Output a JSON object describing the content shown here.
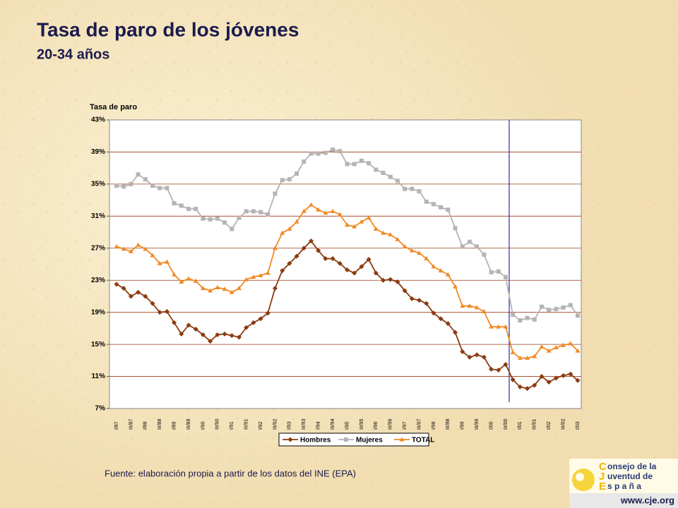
{
  "chart_data": {
    "type": "line",
    "title": "Tasa de paro de los jóvenes",
    "subtitle": "20-34 años",
    "y_label": "Tasa de paro",
    "source": "Fuente: elaboración propia a partir de los datos del INE (EPA)",
    "categories": [
      "I/87",
      null,
      "III/87",
      null,
      "I/88",
      null,
      "III/88",
      null,
      "I/89",
      null,
      "III/89",
      null,
      "I/90",
      null,
      "III/90",
      null,
      "I/91",
      null,
      "III/91",
      null,
      "I/92",
      null,
      "III/92",
      null,
      "I/93",
      null,
      "III/93",
      null,
      "I/94",
      null,
      "III/94",
      null,
      "I/95",
      null,
      "III/95",
      null,
      "I/96",
      null,
      "III/96",
      null,
      "I/97",
      null,
      "III/97",
      null,
      "I/98",
      null,
      "III/98",
      null,
      "I/99",
      null,
      "III/99",
      null,
      "I/00",
      null,
      "III/00",
      null,
      "I/01",
      null,
      "III/01",
      null,
      "I/02",
      null,
      "III/02",
      null,
      "I/03"
    ],
    "series": [
      {
        "name": "Hombres",
        "color": "#8b3a0f",
        "marker": "diamond",
        "values": [
          22.5,
          22.0,
          21.0,
          21.5,
          21.0,
          20.1,
          19.0,
          19.1,
          17.7,
          16.3,
          17.4,
          16.9,
          16.2,
          15.4,
          16.2,
          16.3,
          16.1,
          15.9,
          17.1,
          17.7,
          18.2,
          18.9,
          22.0,
          24.2,
          25.1,
          26.0,
          27.0,
          27.9,
          26.7,
          25.7,
          25.7,
          25.1,
          24.3,
          23.9,
          24.7,
          25.6,
          23.9,
          23.0,
          23.1,
          22.8,
          21.7,
          20.7,
          20.5,
          20.1,
          18.9,
          18.2,
          17.6,
          16.5,
          14.1,
          13.4,
          13.7,
          13.4,
          11.9,
          11.8,
          12.5,
          10.6,
          9.7,
          9.5,
          9.9,
          11.0,
          10.3,
          10.8,
          11.1,
          11.3,
          10.5
        ]
      },
      {
        "name": "Mujeres",
        "color": "#b4b4b4",
        "marker": "square",
        "values": [
          34.8,
          34.7,
          35.0,
          36.2,
          35.6,
          34.8,
          34.5,
          34.5,
          32.6,
          32.3,
          31.9,
          31.9,
          30.7,
          30.6,
          30.7,
          30.2,
          29.4,
          30.8,
          31.6,
          31.6,
          31.5,
          31.2,
          33.8,
          35.5,
          35.6,
          36.3,
          37.8,
          38.8,
          38.8,
          38.9,
          39.3,
          39.1,
          37.5,
          37.5,
          37.9,
          37.6,
          36.8,
          36.4,
          35.9,
          35.4,
          34.4,
          34.4,
          34.1,
          32.8,
          32.5,
          32.1,
          31.8,
          29.5,
          27.2,
          27.8,
          27.2,
          26.2,
          24.0,
          24.1,
          23.4,
          18.7,
          18.0,
          18.3,
          18.1,
          19.7,
          19.3,
          19.4,
          19.6,
          19.9,
          18.6
        ]
      },
      {
        "name": "TOTAL",
        "color": "#f08a24",
        "marker": "triangle",
        "values": [
          27.2,
          26.9,
          26.6,
          27.4,
          26.9,
          26.1,
          25.1,
          25.3,
          23.7,
          22.8,
          23.2,
          22.9,
          22.0,
          21.7,
          22.1,
          21.9,
          21.5,
          22.0,
          23.1,
          23.4,
          23.6,
          23.9,
          27.0,
          28.9,
          29.4,
          30.3,
          31.6,
          32.4,
          31.8,
          31.4,
          31.6,
          31.2,
          29.9,
          29.7,
          30.3,
          30.8,
          29.4,
          28.9,
          28.7,
          28.1,
          27.2,
          26.7,
          26.4,
          25.7,
          24.7,
          24.2,
          23.7,
          22.2,
          19.8,
          19.8,
          19.6,
          19.1,
          17.2,
          17.2,
          17.2,
          14.0,
          13.3,
          13.3,
          13.5,
          14.7,
          14.2,
          14.6,
          14.9,
          15.1,
          14.2
        ]
      }
    ],
    "ylim": [
      7,
      43
    ],
    "yticks": [
      {
        "value": 7,
        "label": "7%"
      },
      {
        "value": 11,
        "label": "11%"
      },
      {
        "value": 15,
        "label": "15%"
      },
      {
        "value": 19,
        "label": "19%"
      },
      {
        "value": 23,
        "label": "23%"
      },
      {
        "value": 27,
        "label": "27%"
      },
      {
        "value": 31,
        "label": "31%"
      },
      {
        "value": 35,
        "label": "35%"
      },
      {
        "value": 39,
        "label": "39%"
      },
      {
        "value": 43,
        "label": "43%"
      }
    ],
    "grid": true,
    "legend": "bottom"
  },
  "logo": {
    "lines": [
      [
        "C",
        "onsejo de la"
      ],
      [
        "J",
        "uventud de"
      ],
      [
        "E",
        "s p a ñ a"
      ]
    ],
    "url": "www.cje.org"
  }
}
